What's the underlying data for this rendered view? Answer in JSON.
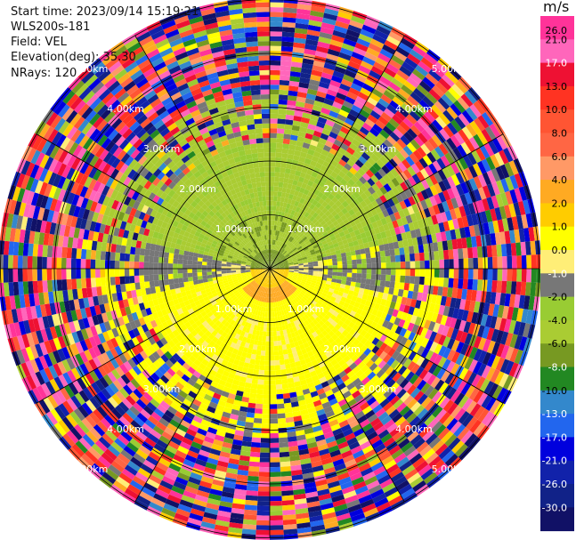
{
  "info": {
    "start_time": "Start time: 2023/09/14 15:19:21",
    "instrument": "WLS200s-181",
    "field": "Field: VEL",
    "elevation": "Elevation(deg): 35.30",
    "nrays": "NRays: 120"
  },
  "colors": {
    "background": "#ffffff",
    "grid": "#000000",
    "range_label": "#ffffff"
  },
  "chart_data": {
    "type": "heatmap",
    "projection": "polar-ppi",
    "field": "VEL",
    "rays": 120,
    "range_rings_km": [
      1,
      2,
      3,
      4,
      5
    ],
    "range_ring_labels": [
      "1.00km",
      "2.00km",
      "3.00km",
      "4.00km",
      "5.00km"
    ],
    "azimuth_lines_deg": [
      0,
      30,
      60,
      90,
      120,
      150,
      180,
      210,
      240,
      270,
      300,
      330
    ],
    "colorbar": {
      "unit": "m/s",
      "tick_labels": [
        "26.0",
        "21.0",
        "17.0",
        "13.0",
        "10.0",
        "8.0",
        "6.0",
        "4.0",
        "2.0",
        "1.0",
        "0.0",
        "-1.0",
        "-2.0",
        "-4.0",
        "-6.0",
        "-8.0",
        "-10.0",
        "-13.0",
        "-17.0",
        "-21.0",
        "-26.0",
        "-30.0"
      ],
      "bins": [
        {
          "lo": 26,
          "hi": 30,
          "color": "#ff3399"
        },
        {
          "lo": 21,
          "hi": 26,
          "color": "#ff66bb"
        },
        {
          "lo": 17,
          "hi": 21,
          "color": "#ee1133"
        },
        {
          "lo": 13,
          "hi": 17,
          "color": "#ff3322"
        },
        {
          "lo": 10,
          "hi": 13,
          "color": "#ff5533"
        },
        {
          "lo": 8,
          "hi": 10,
          "color": "#ff6644"
        },
        {
          "lo": 6,
          "hi": 8,
          "color": "#ff9966"
        },
        {
          "lo": 4,
          "hi": 6,
          "color": "#ffaa22"
        },
        {
          "lo": 2,
          "hi": 4,
          "color": "#ffcc00"
        },
        {
          "lo": 1,
          "hi": 2,
          "color": "#ffff00"
        },
        {
          "lo": 0,
          "hi": 1,
          "color": "#ffee77"
        },
        {
          "lo": -1,
          "hi": 0,
          "color": "#777777"
        },
        {
          "lo": -2,
          "hi": -1,
          "color": "#99cc33"
        },
        {
          "lo": -4,
          "hi": -2,
          "color": "#aacc33"
        },
        {
          "lo": -6,
          "hi": -4,
          "color": "#779922"
        },
        {
          "lo": -8,
          "hi": -6,
          "color": "#228822"
        },
        {
          "lo": -10,
          "hi": -8,
          "color": "#3388cc"
        },
        {
          "lo": -13,
          "hi": -10,
          "color": "#2266ee"
        },
        {
          "lo": -17,
          "hi": -13,
          "color": "#0000dd"
        },
        {
          "lo": -21,
          "hi": -17,
          "color": "#1122aa"
        },
        {
          "lo": -26,
          "hi": -21,
          "color": "#112288"
        },
        {
          "lo": -30,
          "hi": -26,
          "color": "#111166"
        }
      ]
    }
  }
}
